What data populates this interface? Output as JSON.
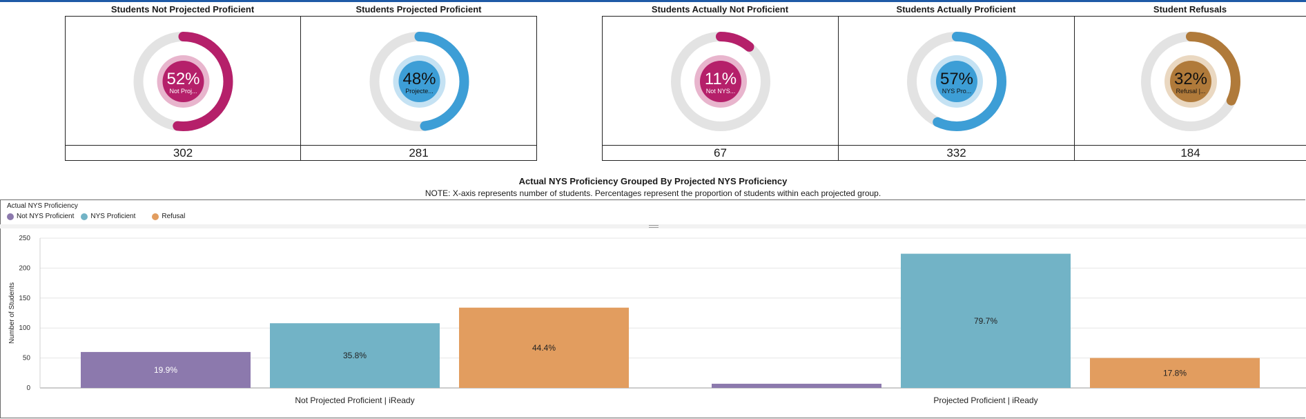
{
  "kpis": [
    {
      "title": "Students Not Projected Proficient",
      "pct": 52,
      "pct_label": "52%",
      "sub_label": "Not Proj...",
      "count": "302",
      "color": "#b5206a",
      "inner": "#b5206a",
      "ring": "#e8b5cd",
      "text_color": "#ffffff"
    },
    {
      "title": "Students Projected Proficient",
      "pct": 48,
      "pct_label": "48%",
      "sub_label": "Projecte...",
      "count": "281",
      "color": "#3d9ed6",
      "inner": "#3d9ed6",
      "ring": "#c5e2f3",
      "text_color": "#111111"
    },
    {
      "title": "Students Actually Not Proficient",
      "pct": 11,
      "pct_label": "11%",
      "sub_label": "Not NYS...",
      "count": "67",
      "color": "#b5206a",
      "inner": "#b5206a",
      "ring": "#e8b5cd",
      "text_color": "#ffffff"
    },
    {
      "title": "Students Actually Proficient",
      "pct": 57,
      "pct_label": "57%",
      "sub_label": "NYS Pro...",
      "count": "332",
      "color": "#3d9ed6",
      "inner": "#3d9ed6",
      "ring": "#c5e2f3",
      "text_color": "#111111"
    },
    {
      "title": "Student Refusals",
      "pct": 32,
      "pct_label": "32%",
      "sub_label": "Refusal |...",
      "count": "184",
      "color": "#b07a3a",
      "inner": "#b07a3a",
      "ring": "#ead8c1",
      "text_color": "#111111"
    }
  ],
  "chart": {
    "title": "Actual NYS Proficiency Grouped By Projected NYS Proficiency",
    "note": "NOTE: X-axis represents number of students.  Percentages represent the proportion of students within each projected group.",
    "legend_title": "Actual NYS Proficiency"
  },
  "chart_data": {
    "type": "bar",
    "categories": [
      "Not Projected Proficient | iReady",
      "Projected Proficient | iReady"
    ],
    "series": [
      {
        "name": "Not NYS Proficient",
        "color": "#8c79ad",
        "values": [
          60,
          7
        ],
        "labels": [
          "19.9%",
          ""
        ]
      },
      {
        "name": "NYS Proficient",
        "color": "#72b3c6",
        "values": [
          108,
          224
        ],
        "labels": [
          "35.8%",
          "79.7%"
        ]
      },
      {
        "name": "Refusal",
        "color": "#e29d5f",
        "values": [
          134,
          50
        ],
        "labels": [
          "44.4%",
          "17.8%"
        ]
      }
    ],
    "ylabel": "Number of Students",
    "ylim": [
      0,
      250
    ],
    "yticks": [
      0,
      50,
      100,
      150,
      200,
      250
    ],
    "grid": true,
    "legend": "top-left"
  }
}
